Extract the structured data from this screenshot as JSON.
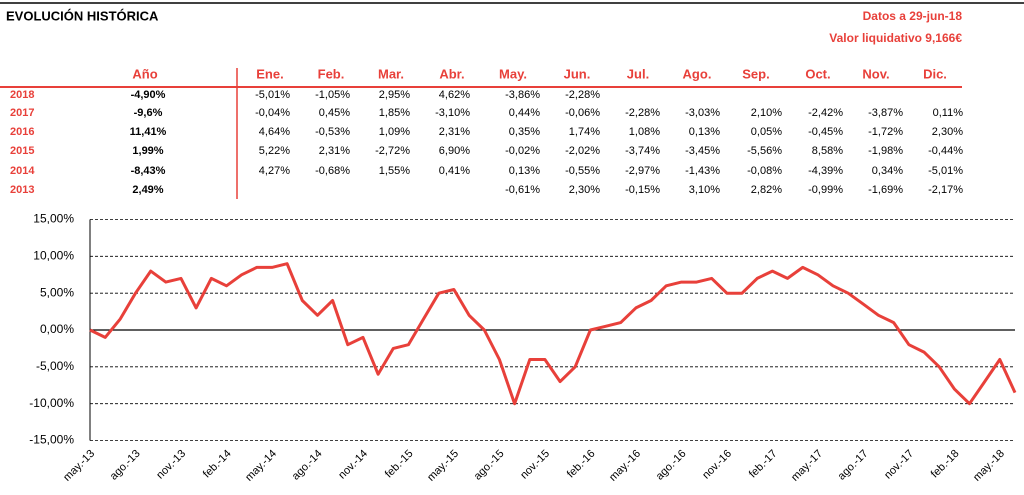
{
  "header": {
    "title": "EVOLUCIÓN HISTÓRICA",
    "date": "Datos a 29-jun-18",
    "nav": "Valor liquidativo 9,166€"
  },
  "table": {
    "columns": [
      "Año",
      "Ene.",
      "Feb.",
      "Mar.",
      "Abr.",
      "May.",
      "Jun.",
      "Jul.",
      "Ago.",
      "Sep.",
      "Oct.",
      "Nov.",
      "Dic."
    ],
    "rows": [
      {
        "year": "2018",
        "annual": "-4,90%",
        "months": [
          "-5,01%",
          "-1,05%",
          "2,95%",
          "4,62%",
          "-3,86%",
          "-2,28%",
          null,
          null,
          null,
          null,
          null,
          null
        ]
      },
      {
        "year": "2017",
        "annual": "-9,6%",
        "months": [
          "-0,04%",
          "0,45%",
          "1,85%",
          "-3,10%",
          "0,44%",
          "-0,06%",
          "-2,28%",
          "-3,03%",
          "2,10%",
          "-2,42%",
          "-3,87%",
          "0,11%"
        ]
      },
      {
        "year": "2016",
        "annual": "11,41%",
        "months": [
          "4,64%",
          "-0,53%",
          "1,09%",
          "2,31%",
          "0,35%",
          "1,74%",
          "1,08%",
          "0,13%",
          "0,05%",
          "-0,45%",
          "-1,72%",
          "2,30%"
        ]
      },
      {
        "year": "2015",
        "annual": "1,99%",
        "months": [
          "5,22%",
          "2,31%",
          "-2,72%",
          "6,90%",
          "-0,02%",
          "-2,02%",
          "-3,74%",
          "-3,45%",
          "-5,56%",
          "8,58%",
          "-1,98%",
          "-0,44%"
        ]
      },
      {
        "year": "2014",
        "annual": "-8,43%",
        "months": [
          "4,27%",
          "-0,68%",
          "1,55%",
          "0,41%",
          "0,13%",
          "-0,55%",
          "-2,97%",
          "-1,43%",
          "-0,08%",
          "-4,39%",
          "0,34%",
          "-5,01%"
        ]
      },
      {
        "year": "2013",
        "annual": "2,49%",
        "months": [
          null,
          null,
          null,
          null,
          "-0,61%",
          "2,30%",
          "-0,15%",
          "3,10%",
          "2,82%",
          "-0,99%",
          "-1,69%",
          "-2,17%"
        ]
      }
    ]
  },
  "chart_data": {
    "type": "line",
    "categories": [
      "may.-13",
      null,
      null,
      "ago.-13",
      null,
      null,
      "nov.-13",
      null,
      null,
      "feb.-14",
      null,
      null,
      "may.-14",
      null,
      null,
      "ago.-14",
      null,
      null,
      "nov.-14",
      null,
      null,
      "feb.-15",
      null,
      null,
      "may.-15",
      null,
      null,
      "ago.-15",
      null,
      null,
      "nov.-15",
      null,
      null,
      "feb.-16",
      null,
      null,
      "may.-16",
      null,
      null,
      "ago.-16",
      null,
      null,
      "nov.-16",
      null,
      null,
      "feb.-17",
      null,
      null,
      "may.-17",
      null,
      null,
      "ago.-17",
      null,
      null,
      "nov.-17",
      null,
      null,
      "feb.-18",
      null,
      null,
      "may.-18",
      null
    ],
    "series": [
      {
        "name": "Valor",
        "color": "#e8403a",
        "values": [
          0,
          -1,
          1.5,
          5,
          8,
          6.5,
          7,
          3,
          7,
          6,
          7.5,
          8.5,
          8.5,
          9,
          4,
          2,
          4,
          -2,
          -1,
          -6,
          -2.5,
          -2,
          1.5,
          5,
          5.5,
          2,
          0,
          -4,
          -10,
          -4,
          -4,
          -7,
          -5,
          0,
          0.5,
          1,
          3,
          4,
          6,
          6.5,
          6.5,
          7,
          5,
          5,
          7,
          8,
          7,
          8.5,
          7.5,
          6,
          5,
          3.5,
          2,
          1,
          -2,
          -3,
          -5,
          -8,
          -10,
          -7,
          -4,
          -8.5
        ]
      }
    ],
    "ylim": [
      -15,
      15
    ],
    "yticks": [
      {
        "value": -15,
        "label": "-15,00%"
      },
      {
        "value": -10,
        "label": "-10,00%"
      },
      {
        "value": -5,
        "label": "-5,00%"
      },
      {
        "value": 0,
        "label": "0,00%"
      },
      {
        "value": 5,
        "label": "5,00%"
      },
      {
        "value": 10,
        "label": "10,00%"
      },
      {
        "value": 15,
        "label": "15,00%"
      }
    ],
    "grid": true
  }
}
